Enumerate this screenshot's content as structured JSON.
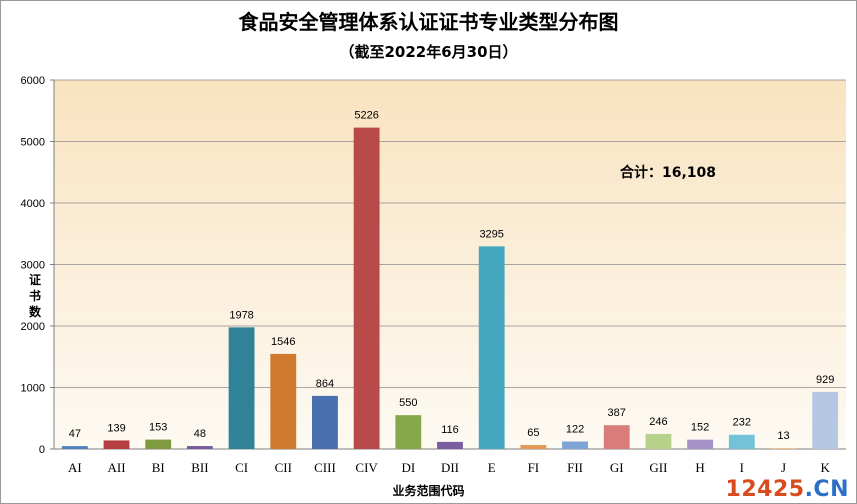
{
  "chart_data": {
    "type": "bar",
    "title": "食品安全管理体系认证证书专业类型分布图",
    "subtitle": "（截至2022年6月30日）",
    "ylabel": "证书数",
    "xlabel": "业务范围代码",
    "ylim": [
      0,
      6000
    ],
    "yticks": [
      0,
      1000,
      2000,
      3000,
      4000,
      5000,
      6000
    ],
    "grid": true,
    "categories": [
      "AI",
      "AII",
      "BI",
      "BII",
      "CI",
      "CII",
      "CIII",
      "CIV",
      "DI",
      "DII",
      "E",
      "FI",
      "FII",
      "GI",
      "GII",
      "H",
      "I",
      "J",
      "K"
    ],
    "values": [
      47,
      139,
      153,
      48,
      1978,
      1546,
      864,
      5226,
      550,
      116,
      3295,
      65,
      122,
      387,
      246,
      152,
      232,
      13,
      929
    ],
    "colors": [
      "#4f81bd",
      "#b6403f",
      "#7f9b3e",
      "#7a5c9c",
      "#2f8297",
      "#cf7a2f",
      "#4a6fae",
      "#b84a49",
      "#86a84a",
      "#7a5fa0",
      "#46a8c0",
      "#e49a55",
      "#7ea4d6",
      "#d97d7b",
      "#b7d08a",
      "#a591c5",
      "#73c3d8",
      "#f0b47c",
      "#b6c7e3"
    ],
    "annotation": "合计：16,108"
  },
  "watermark": {
    "part1": "12425",
    "part2": ".CN"
  }
}
